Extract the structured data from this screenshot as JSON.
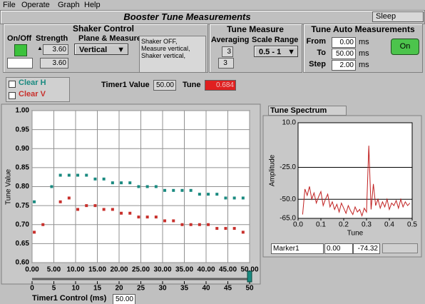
{
  "menu": [
    "File",
    "Operate",
    "Graph",
    "Help"
  ],
  "header": {
    "title": "Booster Tune Measurements",
    "status": "Sleep"
  },
  "shaker_control": {
    "title": "Shaker Control",
    "on_off_label": "On/Off",
    "strength_label": "Strength",
    "strength": "3.60",
    "strength_readback": "3.60",
    "plane_label": "Plane & Measure",
    "plane": "Vertical",
    "status_text": "Shaker OFF, Measure vertical, Shaker vertical,"
  },
  "tune_measure": {
    "title": "Tune Measure",
    "averaging_label": "Averaging",
    "averaging": "3",
    "averaging_readback": "3",
    "scale_label": "Scale Range",
    "scale": "0.5 - 1"
  },
  "auto_measurements": {
    "title": "Tune Auto Measurements",
    "from_label": "From",
    "from": "0.00",
    "to_label": "To",
    "to": "50.00",
    "step_label": "Step",
    "step": "2.00",
    "unit": "ms",
    "button": "On"
  },
  "readouts": {
    "timer_label": "Timer1 Value",
    "timer": "50.00",
    "tune_label": "Tune",
    "tune": "0.684"
  },
  "marker": {
    "name": "Marker1",
    "x": "0.00",
    "y": "-74.32"
  },
  "chart_data": [
    {
      "type": "scatter",
      "y_label": "Tune Value",
      "xlim": [
        0,
        50
      ],
      "xticks": [
        {
          "value": 0,
          "label": "0.00"
        },
        {
          "value": 5,
          "label": "5.00"
        },
        {
          "value": 10,
          "label": "10.00"
        },
        {
          "value": 15,
          "label": "15.00"
        },
        {
          "value": 20,
          "label": "20.00"
        },
        {
          "value": 25,
          "label": "25.00"
        },
        {
          "value": 30,
          "label": "30.00"
        },
        {
          "value": 35,
          "label": "35.00"
        },
        {
          "value": 40,
          "label": "40.00"
        },
        {
          "value": 45,
          "label": "45.00"
        },
        {
          "value": 50,
          "label": "50.00"
        }
      ],
      "ylim": [
        0.6,
        1.0
      ],
      "yticks": [
        {
          "value": 0.6,
          "label": "0.60"
        },
        {
          "value": 0.65,
          "label": "0.65"
        },
        {
          "value": 0.7,
          "label": "0.70"
        },
        {
          "value": 0.75,
          "label": "0.75"
        },
        {
          "value": 0.8,
          "label": "0.80"
        },
        {
          "value": 0.85,
          "label": "0.85"
        },
        {
          "value": 0.9,
          "label": "0.90"
        },
        {
          "value": 0.95,
          "label": "0.95"
        },
        {
          "value": 1.0,
          "label": "1.00"
        }
      ],
      "grid": true,
      "series": [
        {
          "name": "Clear H",
          "color": "#1a8a80",
          "x": [
            0.5,
            4.5,
            6.5,
            8.5,
            10.5,
            12.5,
            14.5,
            16.5,
            18.5,
            20.5,
            22.5,
            24.5,
            26.5,
            28.5,
            30.5,
            32.5,
            34.5,
            36.5,
            38.5,
            40.5,
            42.5,
            44.5,
            46.5,
            48.5
          ],
          "values": [
            0.76,
            0.8,
            0.83,
            0.83,
            0.83,
            0.83,
            0.82,
            0.82,
            0.81,
            0.81,
            0.81,
            0.8,
            0.8,
            0.8,
            0.79,
            0.79,
            0.79,
            0.79,
            0.78,
            0.78,
            0.78,
            0.77,
            0.77,
            0.77
          ]
        },
        {
          "name": "Clear V",
          "color": "#c8302c",
          "x": [
            0.5,
            2.5,
            6.5,
            8.5,
            10.5,
            12.5,
            14.5,
            16.5,
            18.5,
            20.5,
            22.5,
            24.5,
            26.5,
            28.5,
            30.5,
            32.5,
            34.5,
            36.5,
            38.5,
            40.5,
            42.5,
            44.5,
            46.5,
            48.5
          ],
          "values": [
            0.68,
            0.7,
            0.76,
            0.77,
            0.74,
            0.75,
            0.75,
            0.74,
            0.74,
            0.73,
            0.73,
            0.72,
            0.72,
            0.72,
            0.71,
            0.71,
            0.7,
            0.7,
            0.7,
            0.7,
            0.69,
            0.69,
            0.69,
            0.68
          ]
        }
      ],
      "slider": {
        "label": "Timer1 Control (ms)",
        "xticks": [
          0,
          5,
          10,
          15,
          20,
          25,
          30,
          35,
          40,
          45,
          50
        ],
        "value": 50,
        "value_label": "50.00"
      }
    },
    {
      "type": "line",
      "title": "Tune Spectrum",
      "x_label": "Tune",
      "y_label": "Amplitude",
      "xlim": [
        0,
        0.5
      ],
      "xticks": [
        {
          "value": 0,
          "label": "0.0"
        },
        {
          "value": 0.1,
          "label": "0.1"
        },
        {
          "value": 0.2,
          "label": "0.2"
        },
        {
          "value": 0.3,
          "label": "0.3"
        },
        {
          "value": 0.4,
          "label": "0.4"
        },
        {
          "value": 0.5,
          "label": "0.5"
        }
      ],
      "ylim": [
        -65,
        10
      ],
      "yticks": [
        {
          "value": 10,
          "label": "10.0"
        },
        {
          "value": -25,
          "label": "-25.0"
        },
        {
          "value": -50,
          "label": "-50.0"
        },
        {
          "value": -65,
          "label": "-65.0"
        }
      ],
      "grid": true,
      "series": [
        {
          "color": "#c02020",
          "x": [
            0.02,
            0.03,
            0.04,
            0.05,
            0.06,
            0.07,
            0.08,
            0.09,
            0.1,
            0.11,
            0.12,
            0.13,
            0.14,
            0.15,
            0.16,
            0.17,
            0.18,
            0.19,
            0.2,
            0.21,
            0.22,
            0.23,
            0.24,
            0.25,
            0.26,
            0.27,
            0.28,
            0.29,
            0.3,
            0.31,
            0.32,
            0.33,
            0.34,
            0.35,
            0.36,
            0.37,
            0.38,
            0.39,
            0.4,
            0.41,
            0.42,
            0.43,
            0.44,
            0.45,
            0.46,
            0.47,
            0.48,
            0.49
          ],
          "values": [
            -62,
            -42,
            -47,
            -40,
            -50,
            -45,
            -53,
            -48,
            -44,
            -55,
            -50,
            -46,
            -56,
            -52,
            -58,
            -54,
            -60,
            -53,
            -57,
            -61,
            -55,
            -59,
            -62,
            -56,
            -60,
            -58,
            -63,
            -57,
            -60,
            -8,
            -58,
            -38,
            -55,
            -50,
            -57,
            -52,
            -56,
            -50,
            -58,
            -53,
            -55,
            -51,
            -57,
            -50,
            -56,
            -52,
            -55,
            -53
          ]
        }
      ]
    }
  ]
}
